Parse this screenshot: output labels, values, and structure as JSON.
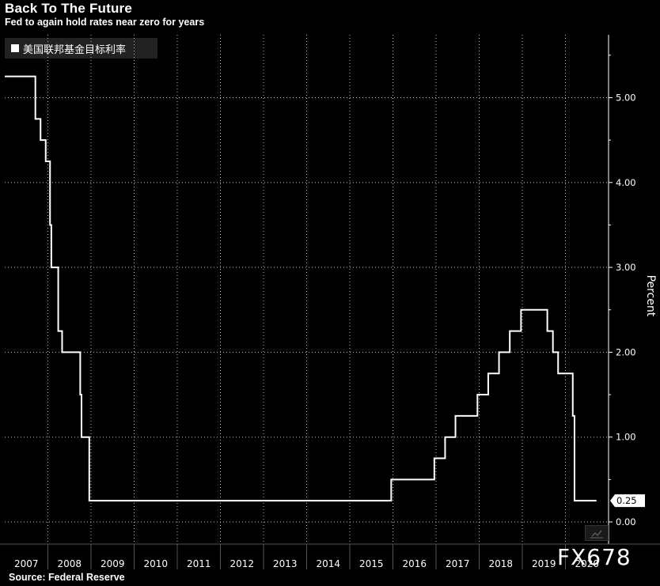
{
  "title": "Back To The Future",
  "subtitle": "Fed to again hold rates near zero for years",
  "source": "Source: Federal Reserve",
  "watermark": "FX678",
  "chart_data": {
    "type": "line",
    "title": "Back To The Future",
    "subtitle": "Fed to again hold rates near zero for years",
    "ylabel": "Percent",
    "xlabel": "",
    "legend": {
      "placement": "top-left",
      "entries": [
        "美国联邦基金目标利率"
      ]
    },
    "ylim": [
      -0.2,
      5.9
    ],
    "yticks": [
      0,
      1,
      2,
      3,
      4,
      5
    ],
    "ytick_labels": [
      "0.00",
      "1.00",
      "2.00",
      "3.00",
      "4.00",
      "5.00"
    ],
    "xlim": [
      2007.0,
      2021.0
    ],
    "xtick_labels": [
      "2007",
      "2008",
      "2009",
      "2010",
      "2011",
      "2012",
      "2013",
      "2014",
      "2015",
      "2016",
      "2017",
      "2018",
      "2019",
      "2020"
    ],
    "grid": true,
    "last_value_label": "0.25",
    "series": [
      {
        "name": "美国联邦基金目标利率",
        "color": "#ffffff",
        "step": true,
        "x": [
          2007.0,
          2007.71,
          2007.83,
          2007.95,
          2008.05,
          2008.08,
          2008.24,
          2008.33,
          2008.75,
          2008.78,
          2008.96,
          2015.96,
          2016.96,
          2017.21,
          2017.45,
          2017.96,
          2018.21,
          2018.46,
          2018.71,
          2018.97,
          2019.58,
          2019.71,
          2019.83,
          2020.17,
          2020.21,
          2020.72
        ],
        "values": [
          5.25,
          4.75,
          4.5,
          4.25,
          3.5,
          3.0,
          2.25,
          2.0,
          1.5,
          1.0,
          0.25,
          0.5,
          0.75,
          1.0,
          1.25,
          1.5,
          1.75,
          2.0,
          2.25,
          2.5,
          2.25,
          2.0,
          1.75,
          1.25,
          0.25,
          0.25
        ]
      }
    ]
  }
}
